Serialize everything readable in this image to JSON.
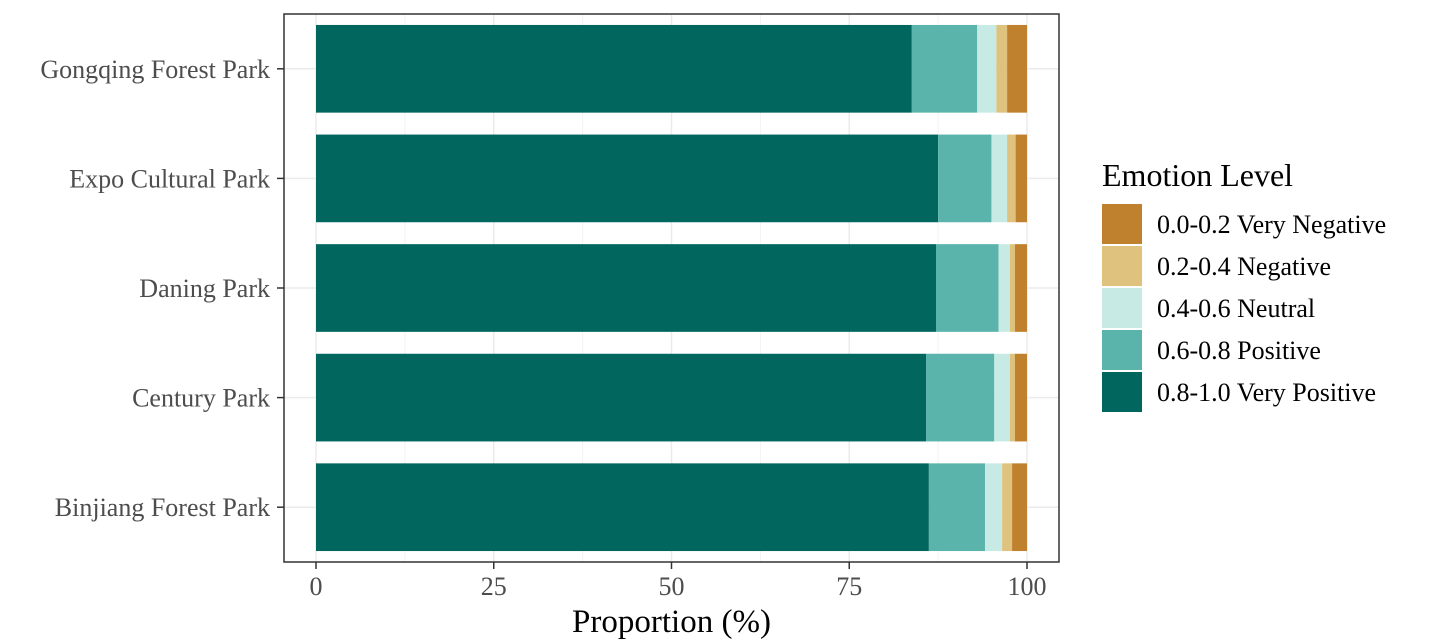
{
  "chart_data": {
    "type": "bar",
    "orientation": "horizontal",
    "stacked": true,
    "categories": [
      "Gongqing Forest Park",
      "Expo Cultural Park",
      "Daning Park",
      "Century Park",
      "Binjiang Forest Park"
    ],
    "series": [
      {
        "name": "0.8-1.0 Very Positive",
        "color": "#01665e",
        "values": [
          83.8,
          87.5,
          87.2,
          85.8,
          86.2
        ]
      },
      {
        "name": "0.6-0.8 Positive",
        "color": "#5ab4ac",
        "values": [
          9.2,
          7.5,
          8.8,
          9.6,
          7.9
        ]
      },
      {
        "name": "0.4-0.6 Neutral",
        "color": "#c7eae5",
        "values": [
          2.7,
          2.2,
          1.6,
          2.2,
          2.4
        ]
      },
      {
        "name": "0.2-0.4 Negative",
        "color": "#dfc27d",
        "values": [
          1.5,
          1.2,
          0.7,
          0.7,
          1.4
        ]
      },
      {
        "name": "0.0-0.2 Very Negative",
        "color": "#bf812d",
        "values": [
          2.8,
          1.6,
          1.7,
          1.7,
          2.1
        ]
      }
    ],
    "xlabel": "Proportion (%)",
    "ylabel": "",
    "xlim": [
      -4.5,
      104.5
    ],
    "x_ticks": [
      "0",
      "25",
      "50",
      "75",
      "100"
    ],
    "grid": true,
    "legend": {
      "title": "Emotion Level",
      "placement": "right",
      "entries": [
        "0.0-0.2 Very Negative",
        "0.2-0.4 Negative",
        "0.4-0.6 Neutral",
        "0.6-0.8 Positive",
        "0.8-1.0 Very Positive"
      ]
    }
  }
}
